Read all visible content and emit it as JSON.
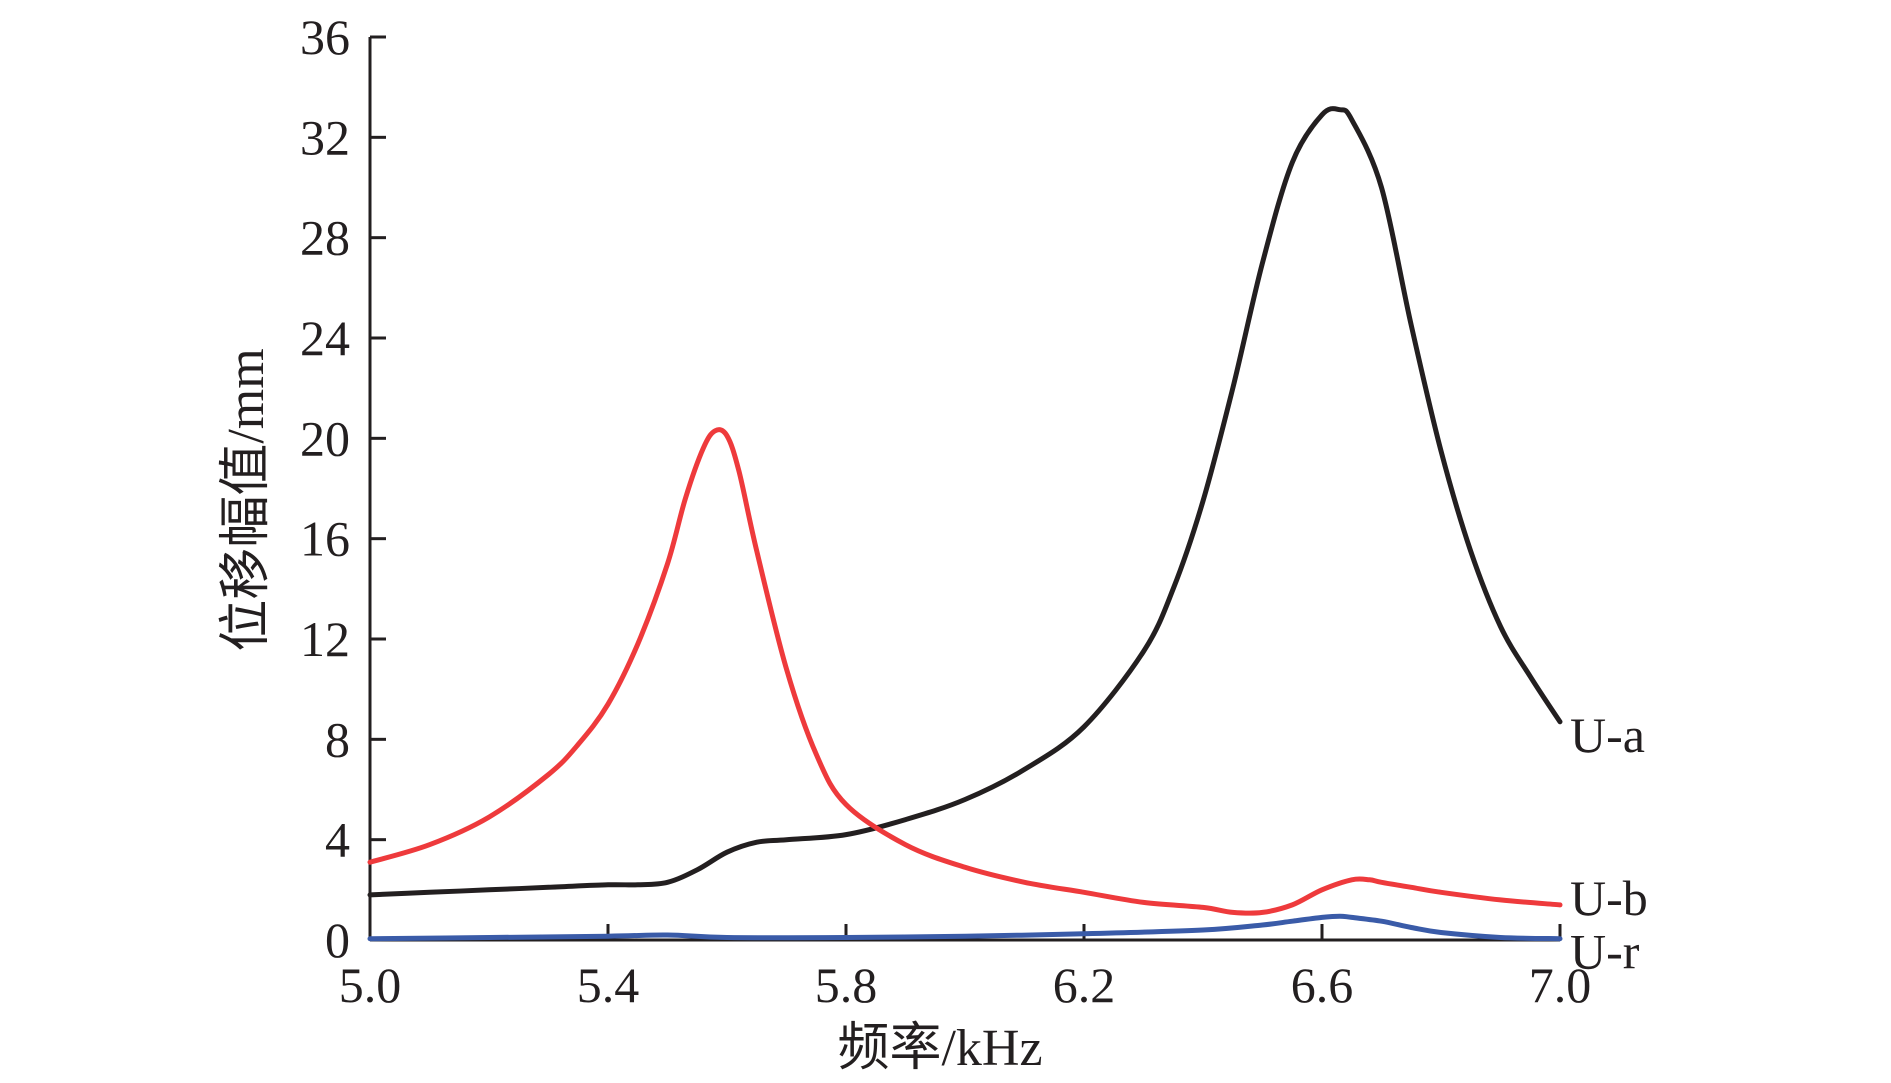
{
  "chart_data": {
    "type": "line",
    "xlabel": "频率/kHz",
    "ylabel": "位移幅值/mm",
    "xlim": [
      5.0,
      7.0
    ],
    "ylim": [
      0,
      36
    ],
    "x_ticks": [
      "5.0",
      "5.4",
      "5.8",
      "6.2",
      "6.6",
      "7.0"
    ],
    "y_ticks": [
      "0",
      "4",
      "8",
      "12",
      "16",
      "20",
      "24",
      "28",
      "32",
      "36"
    ],
    "grid": false,
    "legend": "inline labels at right end of each curve",
    "series": [
      {
        "name": "U-a",
        "color": "#231f20",
        "x": [
          5.0,
          5.1,
          5.2,
          5.3,
          5.4,
          5.45,
          5.5,
          5.55,
          5.6,
          5.65,
          5.7,
          5.8,
          5.9,
          6.0,
          6.1,
          6.2,
          6.3,
          6.35,
          6.4,
          6.45,
          6.5,
          6.55,
          6.6,
          6.63,
          6.65,
          6.7,
          6.75,
          6.8,
          6.85,
          6.9,
          6.95,
          7.0
        ],
        "values": [
          1.8,
          1.9,
          2.0,
          2.1,
          2.2,
          2.2,
          2.3,
          2.8,
          3.5,
          3.9,
          4.0,
          4.2,
          4.8,
          5.6,
          6.8,
          8.5,
          11.5,
          14.0,
          17.5,
          22.0,
          27.0,
          31.0,
          32.9,
          33.1,
          32.7,
          30.0,
          24.5,
          19.5,
          15.5,
          12.5,
          10.5,
          8.7
        ]
      },
      {
        "name": "U-b",
        "color": "#ee3a3c",
        "x": [
          5.0,
          5.1,
          5.2,
          5.3,
          5.35,
          5.4,
          5.45,
          5.5,
          5.53,
          5.56,
          5.58,
          5.6,
          5.62,
          5.65,
          5.7,
          5.75,
          5.8,
          5.9,
          6.0,
          6.1,
          6.2,
          6.3,
          6.4,
          6.45,
          6.5,
          6.55,
          6.6,
          6.65,
          6.68,
          6.7,
          6.75,
          6.8,
          6.9,
          7.0
        ],
        "values": [
          3.1,
          3.8,
          4.9,
          6.6,
          7.8,
          9.4,
          11.8,
          15.0,
          17.6,
          19.6,
          20.3,
          20.1,
          18.7,
          15.5,
          10.8,
          7.4,
          5.4,
          3.8,
          2.9,
          2.3,
          1.9,
          1.5,
          1.3,
          1.1,
          1.1,
          1.4,
          2.0,
          2.4,
          2.4,
          2.3,
          2.1,
          1.9,
          1.6,
          1.4
        ]
      },
      {
        "name": "U-r",
        "color": "#3a5ba8",
        "x": [
          5.0,
          5.2,
          5.4,
          5.5,
          5.6,
          5.8,
          6.0,
          6.2,
          6.4,
          6.5,
          6.55,
          6.6,
          6.63,
          6.65,
          6.7,
          6.75,
          6.8,
          6.9,
          7.0
        ],
        "values": [
          0.05,
          0.1,
          0.15,
          0.2,
          0.1,
          0.1,
          0.15,
          0.25,
          0.4,
          0.6,
          0.75,
          0.9,
          0.95,
          0.9,
          0.75,
          0.5,
          0.3,
          0.1,
          0.05
        ]
      }
    ]
  }
}
